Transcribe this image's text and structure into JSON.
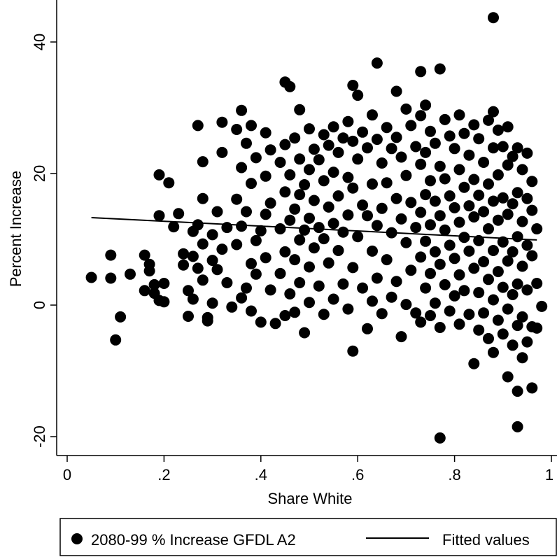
{
  "chart_data": {
    "type": "scatter",
    "xlabel": "Share White",
    "ylabel": "Percent Increase",
    "xlim": [
      0,
      1
    ],
    "ylim": [
      -23,
      45
    ],
    "x_ticks": [
      0,
      0.2,
      0.4,
      0.6,
      0.8,
      1
    ],
    "x_tick_labels": [
      "0",
      ".2",
      ".4",
      ".6",
      ".8",
      "1"
    ],
    "y_ticks": [
      -20,
      0,
      20,
      40
    ],
    "y_tick_labels": [
      "-20",
      "0",
      "20",
      "40"
    ],
    "grid": false,
    "legend_position": "bottom",
    "series": [
      {
        "name": "2080-99 % Increase GFDL A2",
        "kind": "scatter",
        "color": "#000000",
        "points": [
          [
            0.05,
            4.2
          ],
          [
            0.09,
            7.6
          ],
          [
            0.09,
            4.1
          ],
          [
            0.1,
            -5.3
          ],
          [
            0.11,
            -1.8
          ],
          [
            0.13,
            4.7
          ],
          [
            0.16,
            7.6
          ],
          [
            0.16,
            2.2
          ],
          [
            0.17,
            6.2
          ],
          [
            0.17,
            5.2
          ],
          [
            0.18,
            3.1
          ],
          [
            0.18,
            1.8
          ],
          [
            0.19,
            19.8
          ],
          [
            0.19,
            13.6
          ],
          [
            0.19,
            0.7
          ],
          [
            0.2,
            3.3
          ],
          [
            0.2,
            0.5
          ],
          [
            0.21,
            18.6
          ],
          [
            0.22,
            11.9
          ],
          [
            0.23,
            13.9
          ],
          [
            0.24,
            7.8
          ],
          [
            0.24,
            6.1
          ],
          [
            0.25,
            2.2
          ],
          [
            0.25,
            -1.7
          ],
          [
            0.26,
            11.2
          ],
          [
            0.26,
            7.4
          ],
          [
            0.26,
            0.9
          ],
          [
            0.27,
            27.3
          ],
          [
            0.27,
            12.2
          ],
          [
            0.27,
            5.6
          ],
          [
            0.28,
            21.8
          ],
          [
            0.28,
            16.2
          ],
          [
            0.28,
            9.3
          ],
          [
            0.28,
            3.8
          ],
          [
            0.29,
            -1.9
          ],
          [
            0.29,
            -2.4
          ],
          [
            0.3,
            10.7
          ],
          [
            0.3,
            6.8
          ],
          [
            0.3,
            0.3
          ],
          [
            0.31,
            14.2
          ],
          [
            0.31,
            5.4
          ],
          [
            0.32,
            27.8
          ],
          [
            0.32,
            23.2
          ],
          [
            0.32,
            8.5
          ],
          [
            0.33,
            11.8
          ],
          [
            0.33,
            3.4
          ],
          [
            0.34,
            -0.3
          ],
          [
            0.35,
            26.7
          ],
          [
            0.35,
            16.1
          ],
          [
            0.35,
            9.2
          ],
          [
            0.36,
            29.6
          ],
          [
            0.36,
            20.9
          ],
          [
            0.36,
            12.0
          ],
          [
            0.36,
            1.1
          ],
          [
            0.37,
            24.6
          ],
          [
            0.37,
            14.2
          ],
          [
            0.37,
            2.6
          ],
          [
            0.38,
            27.3
          ],
          [
            0.38,
            18.5
          ],
          [
            0.38,
            6.3
          ],
          [
            0.38,
            -0.9
          ],
          [
            0.39,
            22.4
          ],
          [
            0.39,
            9.8
          ],
          [
            0.39,
            4.7
          ],
          [
            0.4,
            11.3
          ],
          [
            0.4,
            -2.6
          ],
          [
            0.41,
            26.2
          ],
          [
            0.41,
            19.6
          ],
          [
            0.41,
            13.8
          ],
          [
            0.41,
            7.2
          ],
          [
            0.42,
            23.6
          ],
          [
            0.42,
            15.5
          ],
          [
            0.42,
            2.3
          ],
          [
            0.43,
            -2.8
          ],
          [
            0.44,
            21.7
          ],
          [
            0.44,
            11.6
          ],
          [
            0.44,
            4.8
          ],
          [
            0.45,
            33.9
          ],
          [
            0.45,
            24.4
          ],
          [
            0.45,
            17.2
          ],
          [
            0.45,
            8.1
          ],
          [
            0.45,
            -1.6
          ],
          [
            0.46,
            33.2
          ],
          [
            0.46,
            19.8
          ],
          [
            0.46,
            12.9
          ],
          [
            0.46,
            1.7
          ],
          [
            0.47,
            25.4
          ],
          [
            0.47,
            14.6
          ],
          [
            0.47,
            6.9
          ],
          [
            0.47,
            -1.1
          ],
          [
            0.48,
            29.7
          ],
          [
            0.48,
            22.2
          ],
          [
            0.48,
            16.8
          ],
          [
            0.48,
            9.9
          ],
          [
            0.48,
            3.4
          ],
          [
            0.49,
            18.3
          ],
          [
            0.49,
            11.4
          ],
          [
            0.49,
            -4.2
          ],
          [
            0.5,
            26.8
          ],
          [
            0.5,
            20.6
          ],
          [
            0.5,
            13.2
          ],
          [
            0.5,
            5.8
          ],
          [
            0.5,
            0.4
          ],
          [
            0.51,
            23.7
          ],
          [
            0.51,
            15.9
          ],
          [
            0.51,
            8.7
          ],
          [
            0.52,
            22.1
          ],
          [
            0.52,
            11.8
          ],
          [
            0.52,
            2.9
          ],
          [
            0.53,
            25.9
          ],
          [
            0.53,
            18.9
          ],
          [
            0.53,
            10.1
          ],
          [
            0.53,
            -1.4
          ],
          [
            0.54,
            24.3
          ],
          [
            0.54,
            14.9
          ],
          [
            0.54,
            6.4
          ],
          [
            0.55,
            27.1
          ],
          [
            0.55,
            20.2
          ],
          [
            0.55,
            12.4
          ],
          [
            0.55,
            0.9
          ],
          [
            0.56,
            23.2
          ],
          [
            0.56,
            16.6
          ],
          [
            0.56,
            8.3
          ],
          [
            0.57,
            25.4
          ],
          [
            0.57,
            11.1
          ],
          [
            0.57,
            3.2
          ],
          [
            0.58,
            27.9
          ],
          [
            0.58,
            19.4
          ],
          [
            0.58,
            13.7
          ],
          [
            0.58,
            -0.6
          ],
          [
            0.59,
            33.4
          ],
          [
            0.59,
            24.9
          ],
          [
            0.59,
            17.8
          ],
          [
            0.59,
            5.7
          ],
          [
            0.59,
            -7.0
          ],
          [
            0.6,
            31.9
          ],
          [
            0.6,
            22.2
          ],
          [
            0.6,
            10.4
          ],
          [
            0.61,
            26.3
          ],
          [
            0.61,
            15.2
          ],
          [
            0.61,
            2.6
          ],
          [
            0.62,
            23.9
          ],
          [
            0.62,
            13.6
          ],
          [
            0.62,
            -3.6
          ],
          [
            0.63,
            28.9
          ],
          [
            0.63,
            18.4
          ],
          [
            0.63,
            8.2
          ],
          [
            0.63,
            0.6
          ],
          [
            0.64,
            36.8
          ],
          [
            0.64,
            25.2
          ],
          [
            0.64,
            12.1
          ],
          [
            0.64,
            4.1
          ],
          [
            0.65,
            21.6
          ],
          [
            0.65,
            14.7
          ],
          [
            0.65,
            -1.3
          ],
          [
            0.66,
            27.0
          ],
          [
            0.66,
            18.6
          ],
          [
            0.66,
            6.9
          ],
          [
            0.67,
            23.8
          ],
          [
            0.67,
            11.0
          ],
          [
            0.67,
            1.2
          ],
          [
            0.68,
            32.5
          ],
          [
            0.68,
            25.5
          ],
          [
            0.68,
            16.2
          ],
          [
            0.68,
            3.6
          ],
          [
            0.69,
            22.5
          ],
          [
            0.69,
            13.1
          ],
          [
            0.69,
            -4.8
          ],
          [
            0.7,
            29.8
          ],
          [
            0.7,
            19.7
          ],
          [
            0.7,
            9.5
          ],
          [
            0.7,
            0.1
          ],
          [
            0.71,
            27.3
          ],
          [
            0.71,
            15.6
          ],
          [
            0.71,
            5.3
          ],
          [
            0.72,
            24.1
          ],
          [
            0.72,
            11.8
          ],
          [
            0.72,
            -1.2
          ],
          [
            0.73,
            35.5
          ],
          [
            0.73,
            28.8
          ],
          [
            0.73,
            21.4
          ],
          [
            0.73,
            14.1
          ],
          [
            0.73,
            7.3
          ],
          [
            0.73,
            -2.6
          ],
          [
            0.74,
            30.4
          ],
          [
            0.74,
            23.2
          ],
          [
            0.74,
            16.8
          ],
          [
            0.74,
            9.7
          ],
          [
            0.74,
            2.6
          ],
          [
            0.75,
            26.4
          ],
          [
            0.75,
            18.9
          ],
          [
            0.75,
            12.2
          ],
          [
            0.75,
            4.8
          ],
          [
            0.75,
            -1.6
          ],
          [
            0.76,
            24.6
          ],
          [
            0.76,
            15.8
          ],
          [
            0.76,
            8.1
          ],
          [
            0.76,
            0.3
          ],
          [
            0.77,
            35.9
          ],
          [
            0.77,
            21.1
          ],
          [
            0.77,
            13.6
          ],
          [
            0.77,
            6.2
          ],
          [
            0.77,
            -3.4
          ],
          [
            0.77,
            -20.2
          ],
          [
            0.78,
            28.2
          ],
          [
            0.78,
            19.2
          ],
          [
            0.78,
            11.4
          ],
          [
            0.78,
            3.1
          ],
          [
            0.79,
            25.7
          ],
          [
            0.79,
            16.6
          ],
          [
            0.79,
            9.1
          ],
          [
            0.79,
            -0.9
          ],
          [
            0.8,
            23.8
          ],
          [
            0.8,
            14.8
          ],
          [
            0.8,
            7.1
          ],
          [
            0.8,
            1.4
          ],
          [
            0.81,
            28.9
          ],
          [
            0.81,
            20.6
          ],
          [
            0.81,
            12.6
          ],
          [
            0.81,
            4.6
          ],
          [
            0.81,
            -2.9
          ],
          [
            0.82,
            26.1
          ],
          [
            0.82,
            17.9
          ],
          [
            0.82,
            10.3
          ],
          [
            0.82,
            2.2
          ],
          [
            0.83,
            22.8
          ],
          [
            0.83,
            15.1
          ],
          [
            0.83,
            8.2
          ],
          [
            0.83,
            -1.4
          ],
          [
            0.84,
            27.4
          ],
          [
            0.84,
            19.1
          ],
          [
            0.84,
            13.4
          ],
          [
            0.84,
            5.6
          ],
          [
            0.84,
            -8.9
          ],
          [
            0.85,
            25.3
          ],
          [
            0.85,
            16.7
          ],
          [
            0.85,
            9.8
          ],
          [
            0.85,
            1.9
          ],
          [
            0.85,
            -3.8
          ],
          [
            0.86,
            21.7
          ],
          [
            0.86,
            14.2
          ],
          [
            0.86,
            6.6
          ],
          [
            0.86,
            -1.2
          ],
          [
            0.87,
            28.1
          ],
          [
            0.87,
            18.4
          ],
          [
            0.87,
            11.6
          ],
          [
            0.87,
            3.9
          ],
          [
            0.87,
            -5.1
          ],
          [
            0.88,
            43.7
          ],
          [
            0.88,
            29.4
          ],
          [
            0.88,
            23.9
          ],
          [
            0.88,
            15.8
          ],
          [
            0.88,
            8.3
          ],
          [
            0.88,
            0.8
          ],
          [
            0.88,
            -7.2
          ],
          [
            0.89,
            26.6
          ],
          [
            0.89,
            19.8
          ],
          [
            0.89,
            12.9
          ],
          [
            0.89,
            5.1
          ],
          [
            0.89,
            -2.3
          ],
          [
            0.9,
            24.1
          ],
          [
            0.9,
            16.3
          ],
          [
            0.9,
            9.6
          ],
          [
            0.9,
            2.7
          ],
          [
            0.9,
            -4.4
          ],
          [
            0.91,
            27.1
          ],
          [
            0.91,
            21.3
          ],
          [
            0.91,
            13.8
          ],
          [
            0.91,
            6.7
          ],
          [
            0.91,
            -0.6
          ],
          [
            0.91,
            -10.9
          ],
          [
            0.92,
            22.6
          ],
          [
            0.92,
            15.4
          ],
          [
            0.92,
            8.1
          ],
          [
            0.92,
            1.6
          ],
          [
            0.92,
            -6.1
          ],
          [
            0.93,
            23.9
          ],
          [
            0.93,
            17.1
          ],
          [
            0.93,
            10.4
          ],
          [
            0.93,
            3.2
          ],
          [
            0.93,
            -3.1
          ],
          [
            0.93,
            -13.1
          ],
          [
            0.93,
            -18.5
          ],
          [
            0.94,
            20.6
          ],
          [
            0.94,
            12.7
          ],
          [
            0.94,
            5.9
          ],
          [
            0.94,
            -1.8
          ],
          [
            0.94,
            -8.0
          ],
          [
            0.95,
            23.1
          ],
          [
            0.95,
            16.2
          ],
          [
            0.95,
            9.1
          ],
          [
            0.95,
            2.3
          ],
          [
            0.95,
            -5.6
          ],
          [
            0.96,
            18.8
          ],
          [
            0.96,
            14.4
          ],
          [
            0.96,
            7.5
          ],
          [
            0.96,
            -12.6
          ],
          [
            0.97,
            11.6
          ],
          [
            0.97,
            3.3
          ],
          [
            0.97,
            -3.5
          ],
          [
            0.98,
            -0.2
          ],
          [
            0.96,
            -3.3
          ]
        ]
      },
      {
        "name": "Fitted values",
        "kind": "line",
        "color": "#000000",
        "points": [
          [
            0.05,
            13.3
          ],
          [
            0.97,
            9.9
          ]
        ]
      }
    ]
  }
}
